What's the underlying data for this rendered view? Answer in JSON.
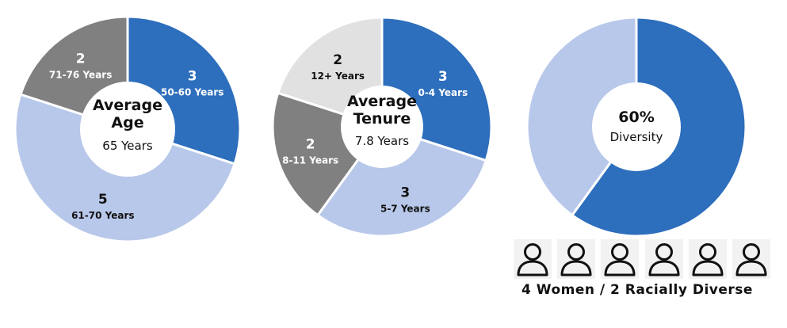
{
  "colors": {
    "dark_blue": "#2d6ebd",
    "light_blue": "#b8c8ea",
    "gray": "#808080",
    "light_gray": "#e1e1e1",
    "white": "#ffffff",
    "text_dark": "#111111"
  },
  "chart_data": [
    {
      "type": "pie",
      "title": "Average Age",
      "center_title": [
        "Average",
        "Age"
      ],
      "center_value": "65 Years",
      "slices": [
        {
          "value": 3,
          "label": "50-60 Years",
          "color": "#2d6ebd",
          "text_color": "#ffffff"
        },
        {
          "value": 5,
          "label": "61-70 Years",
          "color": "#b8c8ea",
          "text_color": "#111111"
        },
        {
          "value": 2,
          "label": "71-76 Years",
          "color": "#808080",
          "text_color": "#ffffff"
        }
      ]
    },
    {
      "type": "pie",
      "title": "Average Tenure",
      "center_title": [
        "Average",
        "Tenure"
      ],
      "center_value": "7.8 Years",
      "slices": [
        {
          "value": 3,
          "label": "0-4 Years",
          "color": "#2d6ebd",
          "text_color": "#ffffff"
        },
        {
          "value": 3,
          "label": "5-7 Years",
          "color": "#b8c8ea",
          "text_color": "#111111"
        },
        {
          "value": 2,
          "label": "8-11 Years",
          "color": "#808080",
          "text_color": "#ffffff"
        },
        {
          "value": 2,
          "label": "12+ Years",
          "color": "#e1e1e1",
          "text_color": "#111111"
        }
      ]
    },
    {
      "type": "pie",
      "title": "Diversity",
      "center_title": [
        "60%"
      ],
      "center_value": "Diversity",
      "slices": [
        {
          "value": 60,
          "label": "",
          "color": "#2d6ebd",
          "text_color": "#ffffff"
        },
        {
          "value": 40,
          "label": "",
          "color": "#b8c8ea",
          "text_color": "#111111"
        }
      ]
    }
  ],
  "people": {
    "count": 6,
    "icon": "person-icon",
    "caption": "4 Women / 2 Racially Diverse"
  }
}
